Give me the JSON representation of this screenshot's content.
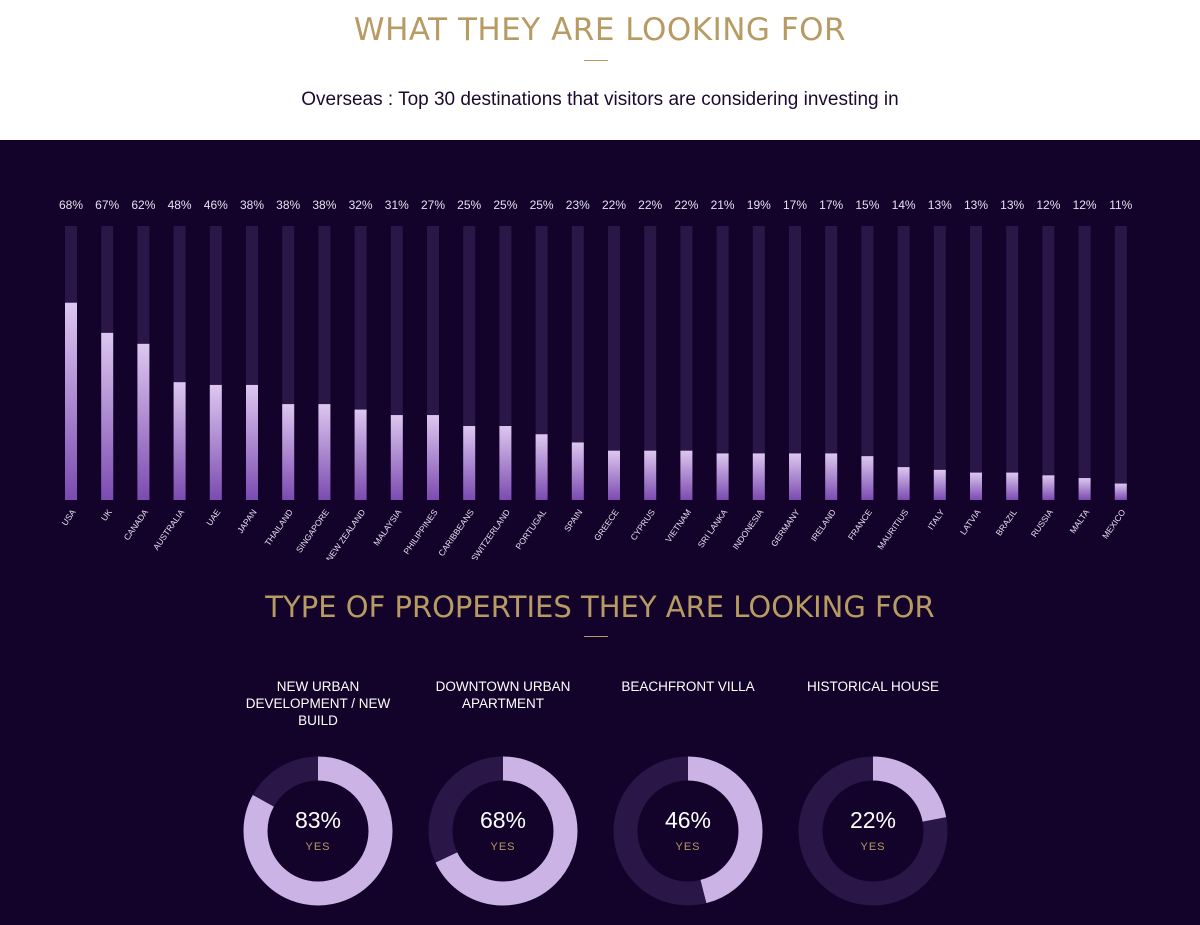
{
  "header": {
    "title": "WHAT THEY ARE LOOKING FOR",
    "subtitle": "Overseas : Top 30 destinations that visitors are considering investing in"
  },
  "chart_data": [
    {
      "type": "bar",
      "categories": [
        "USA",
        "UK",
        "CANADA",
        "AUSTRALIA",
        "UAE",
        "JAPAN",
        "THAILAND",
        "SINGAPORE",
        "NEW ZEALAND",
        "MALAYSIA",
        "PHILIPPINES",
        "CARIBBEANS",
        "SWITZERLAND",
        "PORTUGAL",
        "SPAIN",
        "GREECE",
        "CYPRUS",
        "VIETNAM",
        "SRI LANKA",
        "INDONESIA",
        "GERMANY",
        "IRELAND",
        "FRANCE",
        "MAURITIUS",
        "ITALY",
        "LATVIA",
        "BRAZIL",
        "RUSSIA",
        "MALTA",
        "MEXICO"
      ],
      "values": [
        68,
        67,
        62,
        48,
        46,
        38,
        38,
        38,
        32,
        31,
        27,
        25,
        25,
        25,
        23,
        22,
        22,
        22,
        21,
        19,
        17,
        17,
        15,
        14,
        13,
        13,
        13,
        12,
        12,
        11
      ],
      "bar_levels": [
        72,
        61,
        57,
        43,
        42,
        42,
        35,
        35,
        33,
        31,
        31,
        27,
        27,
        24,
        21,
        18,
        18,
        18,
        17,
        17,
        17,
        17,
        16,
        12,
        11,
        10,
        10,
        9,
        8,
        6
      ],
      "value_labels": [
        "68%",
        "67%",
        "62%",
        "48%",
        "46%",
        "38%",
        "38%",
        "38%",
        "32%",
        "31%",
        "27%",
        "25%",
        "25%",
        "25%",
        "23%",
        "22%",
        "22%",
        "22%",
        "21%",
        "19%",
        "17%",
        "17%",
        "15%",
        "14%",
        "13%",
        "13%",
        "13%",
        "12%",
        "12%",
        "11%"
      ],
      "ylim": [
        0,
        100
      ],
      "colors": {
        "track": "#2a1647",
        "bar_top": "#ddc7f0",
        "bar_bottom": "#7b4bb0"
      }
    },
    {
      "type": "pie",
      "subtype": "donut",
      "categories": [
        "NEW URBAN DEVELOPMENT / NEW BUILD",
        "DOWNTOWN URBAN APARTMENT",
        "BEACHFRONT VILLA",
        "HISTORICAL HOUSE"
      ],
      "values": [
        83,
        68,
        46,
        22
      ],
      "colors": {
        "fill": "#cbb3e6",
        "track": "#2a1647"
      }
    }
  ],
  "properties": {
    "title": "TYPE OF PROPERTIES THEY ARE LOOKING FOR",
    "items": [
      {
        "title": "NEW URBAN DEVELOPMENT / NEW BUILD",
        "value_label": "83%",
        "yes_label": "YES"
      },
      {
        "title": "DOWNTOWN URBAN APARTMENT",
        "value_label": "68%",
        "yes_label": "YES"
      },
      {
        "title": "BEACHFRONT VILLA",
        "value_label": "46%",
        "yes_label": "YES"
      },
      {
        "title": "HISTORICAL HOUSE",
        "value_label": "22%",
        "yes_label": "YES"
      }
    ]
  },
  "colors": {
    "gold": "#b89a63",
    "background": "#13032a",
    "text": "#ffffff"
  }
}
